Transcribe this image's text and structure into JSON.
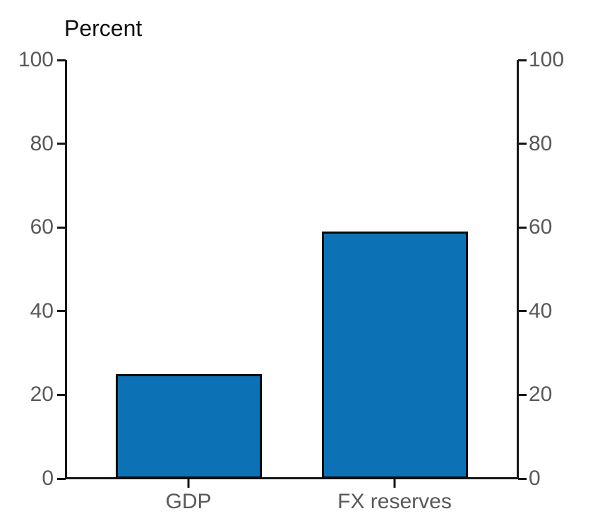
{
  "chart_data": {
    "type": "bar",
    "title": "",
    "ylabel": "Percent",
    "xlabel": "",
    "categories": [
      "GDP",
      "FX reserves"
    ],
    "values": [
      25,
      59
    ],
    "ylim": [
      0,
      100
    ],
    "yticks": [
      0,
      20,
      40,
      60,
      80,
      100
    ],
    "dual_y_axis": true,
    "grid": false,
    "legend_position": "none",
    "colors": {
      "bar_fill": "#0D72B5",
      "bar_border": "#0A0A0A",
      "axis": "#161616",
      "tick_label": "#595959",
      "title_text": "#0D0D0D",
      "background": "#FFFFFF"
    }
  }
}
